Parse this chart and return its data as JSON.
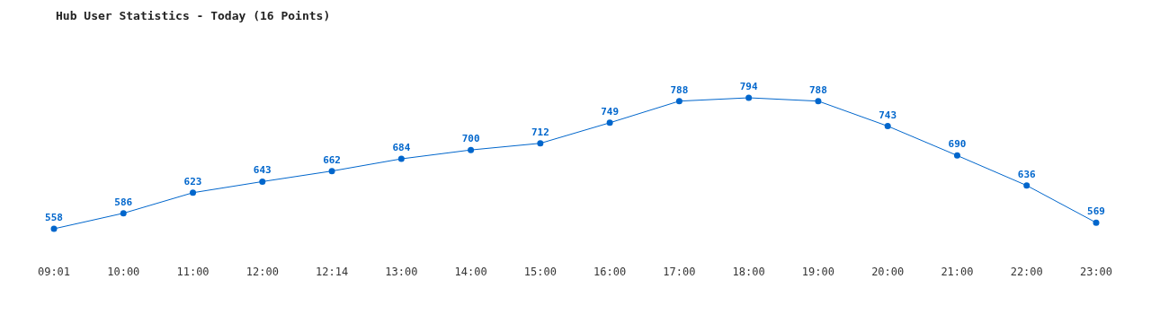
{
  "chart_data": {
    "type": "line",
    "title": "Hub User Statistics - Today (16 Points)",
    "categories": [
      "09:01",
      "10:00",
      "11:00",
      "12:00",
      "12:14",
      "13:00",
      "14:00",
      "15:00",
      "16:00",
      "17:00",
      "18:00",
      "19:00",
      "20:00",
      "21:00",
      "22:00",
      "23:00"
    ],
    "values": [
      558,
      586,
      623,
      643,
      662,
      684,
      700,
      712,
      749,
      788,
      794,
      788,
      743,
      690,
      636,
      569
    ],
    "color": "#0066cc",
    "marker": "circle",
    "data_labels": true
  }
}
